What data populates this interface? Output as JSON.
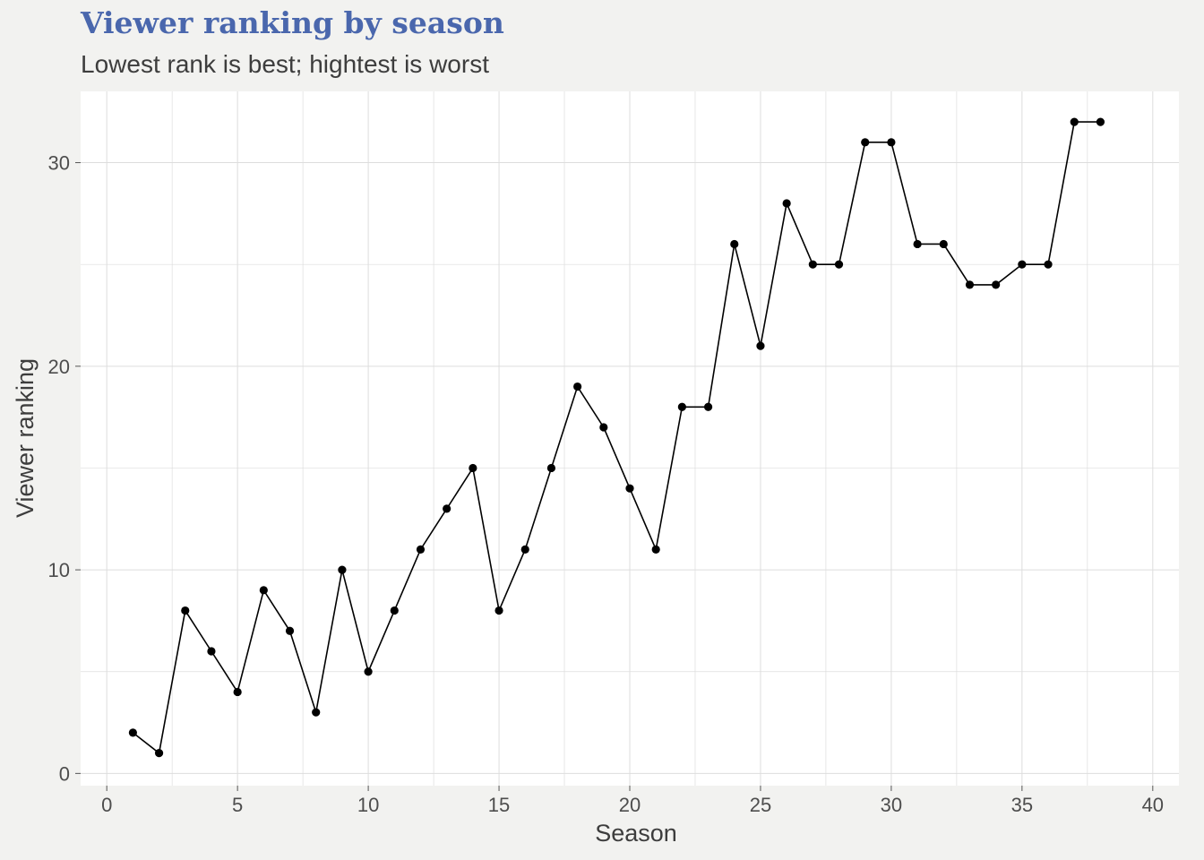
{
  "chart_data": {
    "type": "line",
    "title": "Viewer ranking by season",
    "subtitle": "Lowest rank is best; hightest is worst",
    "xlabel": "Season",
    "ylabel": "Viewer ranking",
    "xlim": [
      -1,
      41
    ],
    "ylim": [
      -0.6,
      33.5
    ],
    "xticks": [
      0,
      5,
      10,
      15,
      20,
      25,
      30,
      35,
      40
    ],
    "yticks": [
      0,
      10,
      20,
      30
    ],
    "grid": true,
    "legend": "none",
    "colors": {
      "line": "#000000",
      "point": "#000000",
      "panel": "#ffffff",
      "background": "#f2f2f0",
      "grid": "#dddddd",
      "title": "#4a67ad"
    },
    "x": [
      1,
      2,
      3,
      4,
      5,
      6,
      7,
      8,
      9,
      10,
      11,
      12,
      13,
      14,
      15,
      16,
      17,
      18,
      19,
      20,
      21,
      22,
      23,
      24,
      25,
      26,
      27,
      28,
      29,
      30,
      31,
      32,
      33,
      34,
      35,
      36,
      37,
      38
    ],
    "y": [
      2,
      1,
      8,
      6,
      4,
      9,
      7,
      3,
      10,
      5,
      8,
      11,
      13,
      15,
      8,
      11,
      15,
      19,
      17,
      14,
      11,
      18,
      18,
      26,
      21,
      28,
      25,
      25,
      31,
      31,
      26,
      26,
      24,
      24,
      25,
      25,
      32,
      32
    ]
  }
}
